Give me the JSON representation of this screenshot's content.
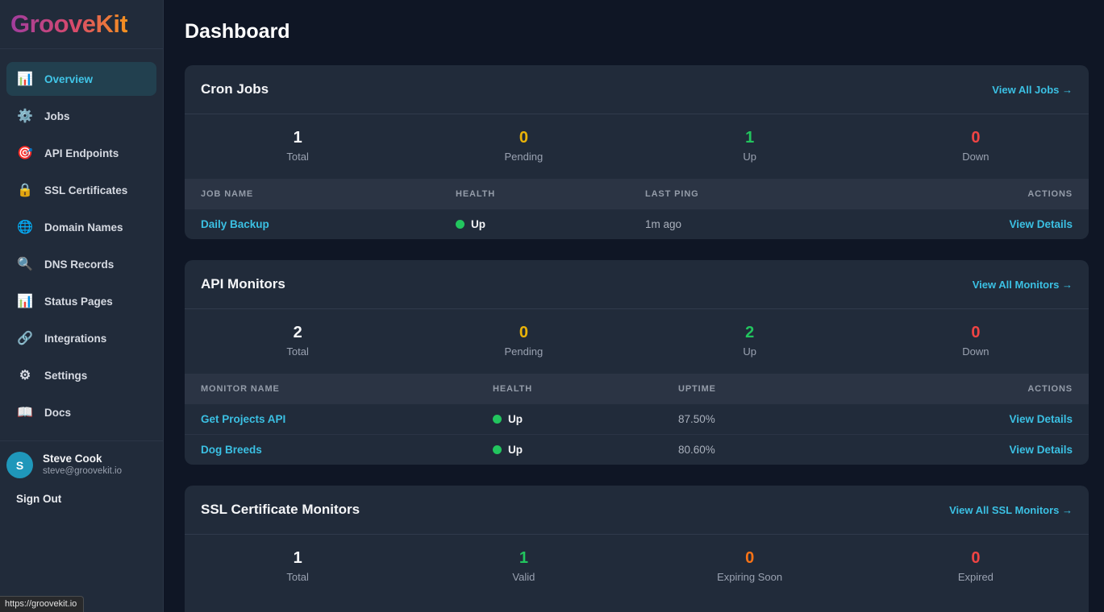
{
  "theme": {
    "accent_cyan": "#3bc0e3",
    "status_white": "#f5f6f8",
    "status_yellow": "#eab308",
    "status_green": "#22c55e",
    "status_red": "#ef4444",
    "status_orange": "#f97316"
  },
  "browser": {
    "status_tooltip": "https://groovekit.io"
  },
  "sidebar": {
    "logo": "GrooveKit",
    "items": [
      {
        "label": "Overview",
        "glyph": "📊",
        "active": true
      },
      {
        "label": "Jobs",
        "glyph": "⚙️"
      },
      {
        "label": "API Endpoints",
        "glyph": "🎯"
      },
      {
        "label": "SSL Certificates",
        "glyph": "🔒"
      },
      {
        "label": "Domain Names",
        "glyph": "🌐"
      },
      {
        "label": "DNS Records",
        "glyph": "🔍"
      },
      {
        "label": "Status Pages",
        "glyph": "📊"
      },
      {
        "label": "Integrations",
        "glyph": "🔗"
      },
      {
        "label": "Settings",
        "glyph": "⚙"
      },
      {
        "label": "Docs",
        "glyph": "📖"
      }
    ],
    "user": {
      "initial": "S",
      "name": "Steve Cook",
      "email": "steve@groovekit.io"
    },
    "sign_out_label": "Sign Out"
  },
  "page": {
    "title": "Dashboard"
  },
  "cards": [
    {
      "title": "Cron Jobs",
      "view_all": "View All Jobs →",
      "stats": [
        {
          "value": "1",
          "label": "Total",
          "color": "#f5f6f8"
        },
        {
          "value": "0",
          "label": "Pending",
          "color": "#eab308"
        },
        {
          "value": "1",
          "label": "Up",
          "color": "#22c55e"
        },
        {
          "value": "0",
          "label": "Down",
          "color": "#ef4444"
        }
      ],
      "table": {
        "headers": [
          "JOB NAME",
          "HEALTH",
          "LAST PING",
          "ACTIONS"
        ],
        "rows": [
          {
            "name": "Daily Backup",
            "health": "Up",
            "metric": "1m ago",
            "action": "View Details"
          }
        ]
      }
    },
    {
      "title": "API Monitors",
      "view_all": "View All Monitors →",
      "stats": [
        {
          "value": "2",
          "label": "Total",
          "color": "#f5f6f8"
        },
        {
          "value": "0",
          "label": "Pending",
          "color": "#eab308"
        },
        {
          "value": "2",
          "label": "Up",
          "color": "#22c55e"
        },
        {
          "value": "0",
          "label": "Down",
          "color": "#ef4444"
        }
      ],
      "table": {
        "headers": [
          "MONITOR NAME",
          "HEALTH",
          "UPTIME",
          "ACTIONS"
        ],
        "rows": [
          {
            "name": "Get Projects API",
            "health": "Up",
            "metric": "87.50%",
            "action": "View Details"
          },
          {
            "name": "Dog Breeds",
            "health": "Up",
            "metric": "80.60%",
            "action": "View Details"
          }
        ]
      }
    },
    {
      "title": "SSL Certificate Monitors",
      "view_all": "View All SSL Monitors →",
      "stats": [
        {
          "value": "1",
          "label": "Total",
          "color": "#f5f6f8"
        },
        {
          "value": "1",
          "label": "Valid",
          "color": "#22c55e"
        },
        {
          "value": "0",
          "label": "Expiring Soon",
          "color": "#f97316"
        },
        {
          "value": "0",
          "label": "Expired",
          "color": "#ef4444"
        }
      ]
    }
  ]
}
